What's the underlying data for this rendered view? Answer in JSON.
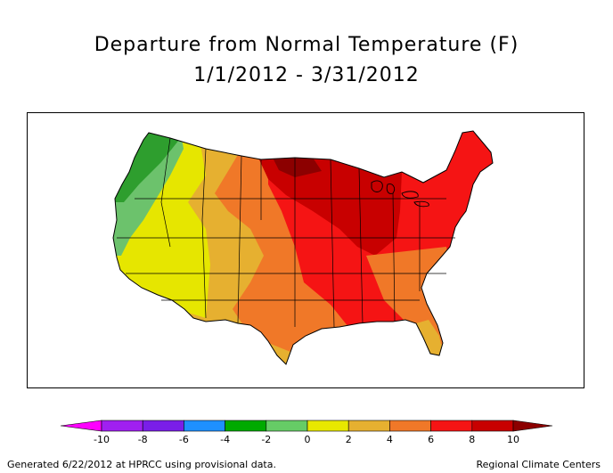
{
  "title": {
    "line1": "Departure from Normal Temperature (F)",
    "line2": "1/1/2012 - 3/31/2012"
  },
  "legend": {
    "ticks": [
      "-10",
      "-8",
      "-6",
      "-4",
      "-2",
      "0",
      "2",
      "4",
      "6",
      "8",
      "10"
    ],
    "colors": [
      "#ff00ff",
      "#a020f0",
      "#7a1ee8",
      "#1e90ff",
      "#00aa00",
      "#66cc66",
      "#e8e800",
      "#e6b030",
      "#f07828",
      "#f51414",
      "#c80000",
      "#8c0000"
    ]
  },
  "map_colors": {
    "green": "#2e9e2e",
    "light_green": "#6cc26c",
    "yellow": "#e6e600",
    "light_orange": "#e6b030",
    "orange": "#f07828",
    "red": "#f51414",
    "dark_red": "#c80000",
    "darkest_red": "#8c0000"
  },
  "footer": {
    "left": "Generated 6/22/2012 at HPRCC using provisional data.",
    "right": "Regional Climate Centers"
  }
}
